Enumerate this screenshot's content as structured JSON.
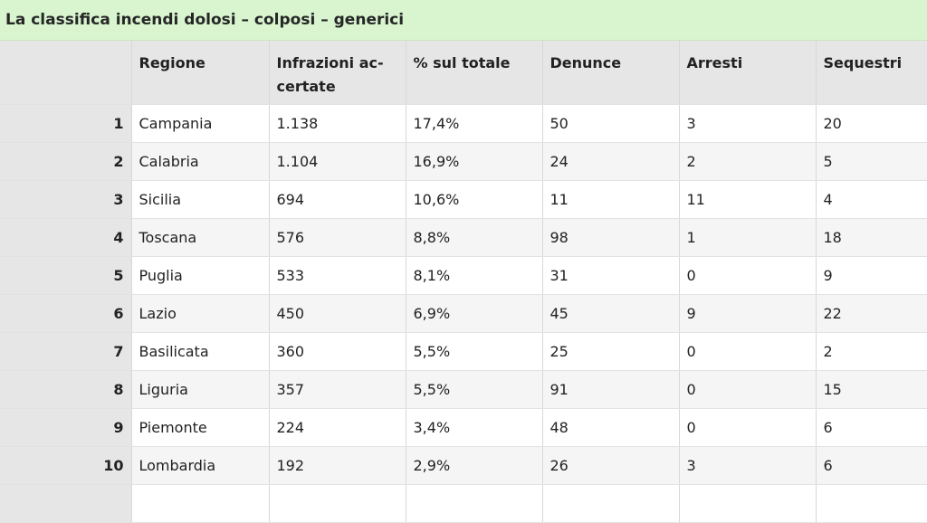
{
  "title": "La classifica incendi dolosi – colposi – generici",
  "table": {
    "headers": [
      "",
      "Regione",
      "Infrazioni ac-certate",
      "% sul totale",
      "Denunce",
      "Arresti",
      "Sequestri"
    ],
    "rows": [
      [
        "1",
        "Campania",
        "1.138",
        "17,4%",
        "50",
        "3",
        "20"
      ],
      [
        "2",
        "Calabria",
        "1.104",
        "16,9%",
        "24",
        "2",
        "5"
      ],
      [
        "3",
        "Sicilia",
        "694",
        "10,6%",
        "11",
        "11",
        "4"
      ],
      [
        "4",
        "Toscana",
        "576",
        "8,8%",
        "98",
        "1",
        "18"
      ],
      [
        "5",
        "Puglia",
        "533",
        "8,1%",
        "31",
        "0",
        "9"
      ],
      [
        "6",
        "Lazio",
        "450",
        "6,9%",
        "45",
        "9",
        "22"
      ],
      [
        "7",
        "Basilicata",
        "360",
        "5,5%",
        "25",
        "0",
        "2"
      ],
      [
        "8",
        "Liguria",
        "357",
        "5,5%",
        "91",
        "0",
        "15"
      ],
      [
        "9",
        "Piemonte",
        "224",
        "3,4%",
        "48",
        "0",
        "6"
      ],
      [
        "10",
        "Lombardia",
        "192",
        "2,9%",
        "26",
        "3",
        "6"
      ],
      [
        "",
        "",
        "",
        "",
        "",
        "",
        ""
      ]
    ]
  }
}
